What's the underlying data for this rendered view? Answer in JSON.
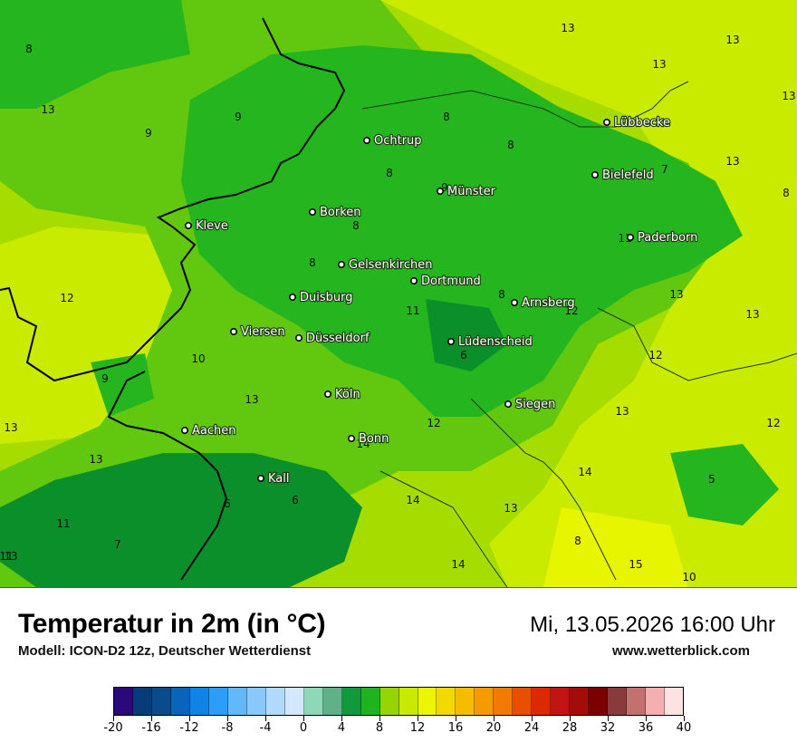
{
  "map": {
    "cities": [
      {
        "name": "Lübbecke"
      },
      {
        "name": "Ochtrup"
      },
      {
        "name": "Bielefeld"
      },
      {
        "name": "Münster"
      },
      {
        "name": "Kleve"
      },
      {
        "name": "Borken"
      },
      {
        "name": "Paderborn"
      },
      {
        "name": "Gelsenkirchen"
      },
      {
        "name": "Dortmund"
      },
      {
        "name": "Duisburg"
      },
      {
        "name": "Arnsberg"
      },
      {
        "name": "Viersen"
      },
      {
        "name": "Düsseldorf"
      },
      {
        "name": "Lüdenscheid"
      },
      {
        "name": "Köln"
      },
      {
        "name": "Siegen"
      },
      {
        "name": "Aachen"
      },
      {
        "name": "Bonn"
      },
      {
        "name": "Kall"
      }
    ],
    "isolabels": [
      "13",
      "13",
      "13",
      "13",
      "8",
      "9",
      "8",
      "8",
      "13",
      "9",
      "8",
      "7",
      "13",
      "8",
      "9",
      "8",
      "8",
      "11",
      "12",
      "8",
      "13",
      "13",
      "11",
      "12",
      "13",
      "10",
      "12",
      "6",
      "9",
      "13",
      "13",
      "13",
      "12",
      "12",
      "13",
      "14",
      "14",
      "5",
      "6",
      "6",
      "14",
      "13",
      "11",
      "7",
      "11",
      "8",
      "14",
      "15",
      "10"
    ],
    "colors": {
      "deep_green": "#0a8f2b",
      "mid_green": "#25b61f",
      "light_green": "#62c80f",
      "yellow_green": "#a6dc00",
      "lime": "#c9eb00",
      "yellow": "#e8f500"
    }
  },
  "footer": {
    "title": "Temperatur in 2m (in °C)",
    "model": "Modell: ICON-D2 12z, Deutscher Wetterdienst",
    "datetime": "Mi, 13.05.2026 16:00 Uhr",
    "website": "www.wetterblick.com"
  },
  "legend": {
    "ticks": [
      "-20",
      "-16",
      "-12",
      "-8",
      "-4",
      "0",
      "4",
      "8",
      "12",
      "16",
      "20",
      "24",
      "28",
      "32",
      "36",
      "40"
    ],
    "colors": [
      "#2a0a78",
      "#073c78",
      "#0b4a8c",
      "#0a63bd",
      "#0f84e6",
      "#2d9ef7",
      "#63b8f8",
      "#88c8fa",
      "#b0d9fc",
      "#d3e8fd",
      "#8ed8b8",
      "#60b188",
      "#0f9a3c",
      "#1fb31f",
      "#96d403",
      "#c8ea00",
      "#eef500",
      "#f3d900",
      "#f5bc00",
      "#f59a00",
      "#f27a00",
      "#e84f00",
      "#dc2a00",
      "#c21414",
      "#a60b0b",
      "#7a0000",
      "#8a3a3a",
      "#c66f6f",
      "#f4b0b0",
      "#fde2e2"
    ]
  }
}
